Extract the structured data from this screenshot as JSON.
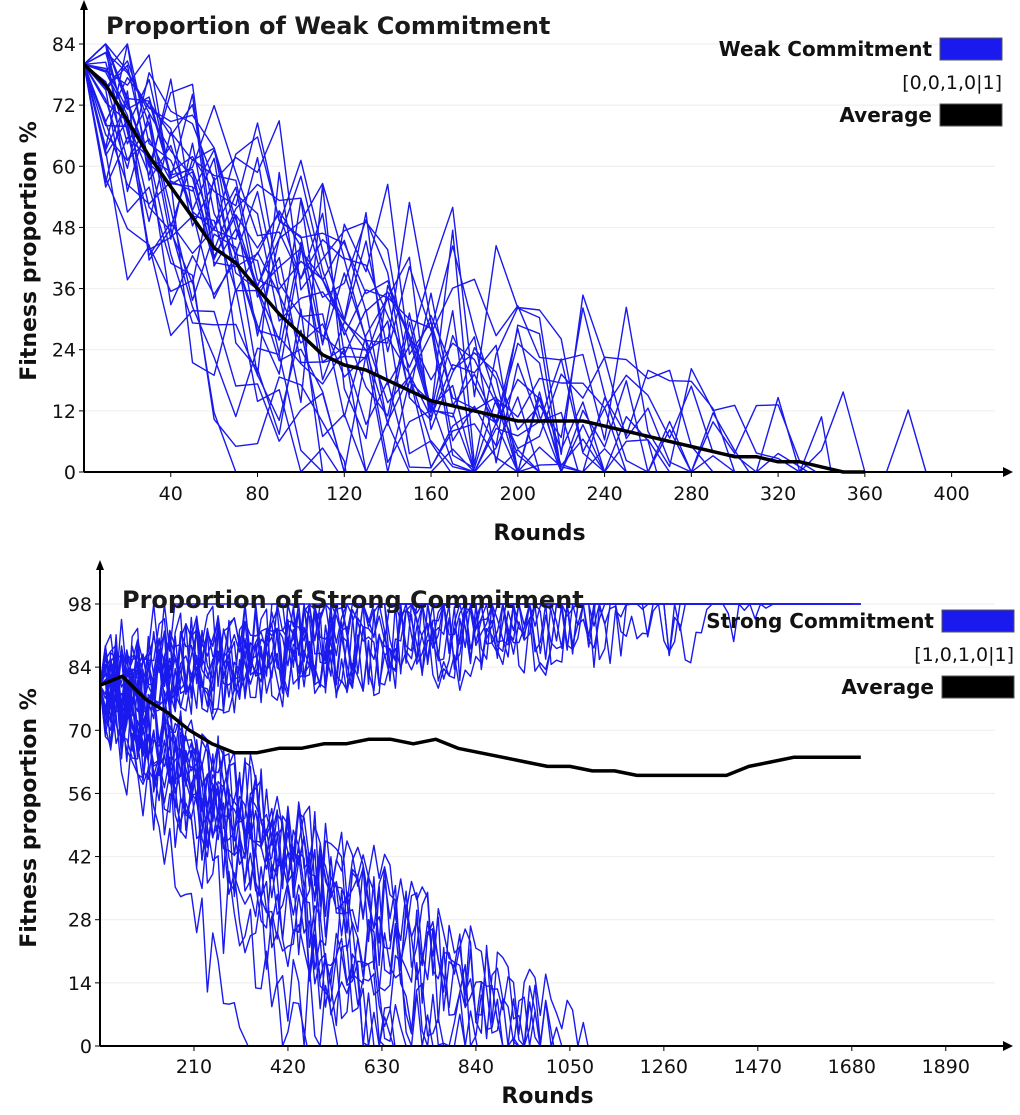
{
  "colors": {
    "runs": "#1a1aee",
    "average": "#000000",
    "grid": "#eeeeee"
  },
  "chart_data": [
    {
      "type": "line",
      "title": "Proportion of Weak Commitment",
      "xlabel": "Rounds",
      "ylabel": "Fitness proportion %",
      "xlim": [
        0,
        420
      ],
      "ylim": [
        0,
        84
      ],
      "x_ticks": [
        40,
        80,
        120,
        160,
        200,
        240,
        280,
        320,
        360,
        400
      ],
      "y_ticks": [
        0,
        12,
        24,
        36,
        48,
        60,
        72,
        84
      ],
      "grid": true,
      "legend": {
        "placement": "top-right",
        "runs_label": "Weak Commitment",
        "code": "[0,0,1,0|1]",
        "average_label": "Average"
      },
      "series": [
        {
          "role": "runs",
          "count": 30,
          "start": 80,
          "extinction_range": [
            70,
            390
          ]
        },
        {
          "role": "average",
          "x": [
            0,
            10,
            20,
            30,
            40,
            50,
            60,
            70,
            80,
            90,
            100,
            110,
            120,
            130,
            140,
            150,
            160,
            170,
            180,
            190,
            200,
            210,
            220,
            230,
            240,
            250,
            260,
            270,
            280,
            290,
            300,
            310,
            320,
            330,
            340,
            350,
            360
          ],
          "values": [
            80,
            76,
            69,
            62,
            56,
            50,
            44,
            41,
            36,
            31,
            27,
            23,
            21,
            20,
            18,
            16,
            14,
            13,
            12,
            11,
            10,
            10,
            10,
            10,
            9,
            8,
            7,
            6,
            5,
            4,
            3,
            3,
            2,
            2,
            1,
            0,
            0
          ]
        }
      ]
    },
    {
      "type": "line",
      "title": "Proportion of Strong Commitment",
      "xlabel": "Rounds",
      "ylabel": "Fitness proportion %",
      "xlim": [
        0,
        2000
      ],
      "ylim": [
        0,
        98
      ],
      "x_ticks": [
        210,
        420,
        630,
        840,
        1050,
        1260,
        1470,
        1680,
        1890
      ],
      "y_ticks": [
        0,
        14,
        28,
        42,
        56,
        70,
        84,
        98
      ],
      "grid": true,
      "legend": {
        "placement": "top-right",
        "runs_label": "Strong Commitment",
        "code": "[1,0,1,0|1]",
        "average_label": "Average"
      },
      "series": [
        {
          "role": "runs",
          "count": 30,
          "start": 80,
          "end_states": [
            "fixation at 98",
            "extinction at 0"
          ]
        },
        {
          "role": "average",
          "x": [
            0,
            50,
            100,
            150,
            200,
            250,
            300,
            350,
            400,
            450,
            500,
            550,
            600,
            650,
            700,
            750,
            800,
            850,
            900,
            950,
            1000,
            1050,
            1100,
            1150,
            1200,
            1250,
            1300,
            1350,
            1400,
            1450,
            1500,
            1550,
            1600,
            1650,
            1700
          ],
          "values": [
            80,
            82,
            77,
            74,
            70,
            67,
            65,
            65,
            66,
            66,
            67,
            67,
            68,
            68,
            67,
            68,
            66,
            65,
            64,
            63,
            62,
            62,
            61,
            61,
            60,
            60,
            60,
            60,
            60,
            62,
            63,
            64,
            64,
            64,
            64
          ]
        }
      ]
    }
  ]
}
